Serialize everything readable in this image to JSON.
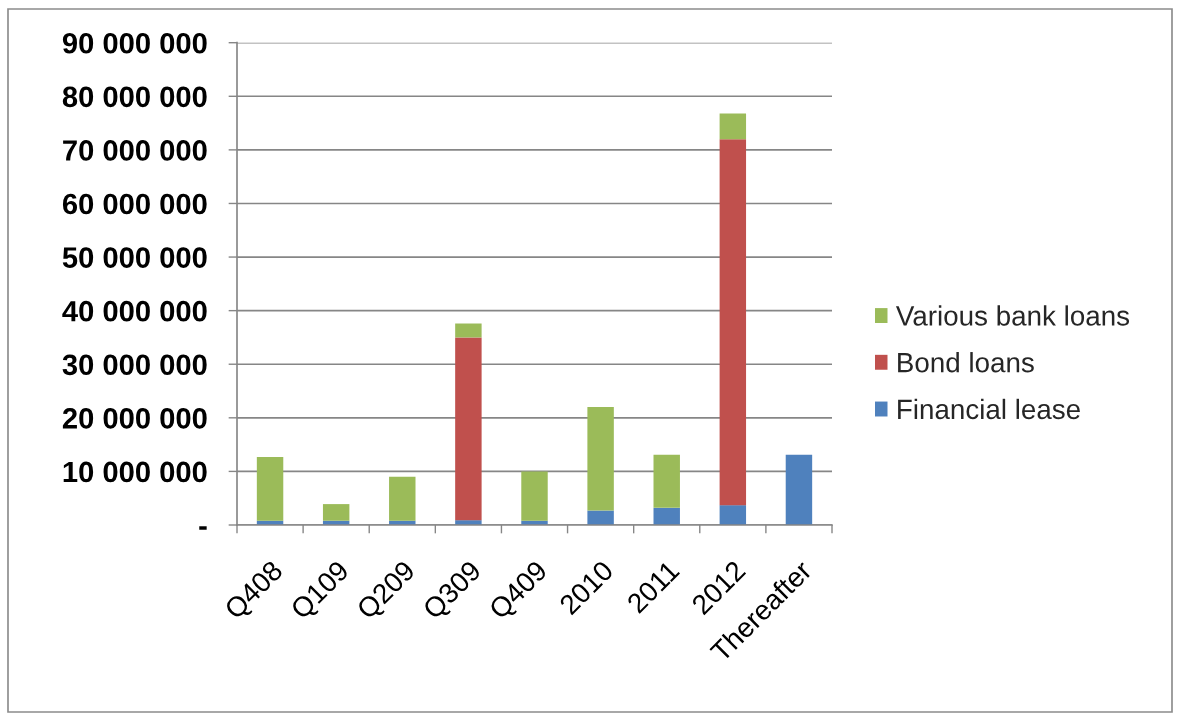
{
  "chart_data": {
    "type": "bar",
    "stacked": true,
    "categories": [
      "Q408",
      "Q109",
      "Q209",
      "Q309",
      "Q409",
      "2010",
      "2011",
      "2012",
      "Thereafter"
    ],
    "series": [
      {
        "name": "Financial lease",
        "color": "#4f81bd",
        "values": [
          800000,
          800000,
          800000,
          900000,
          800000,
          2700000,
          3200000,
          3700000,
          13100000
        ]
      },
      {
        "name": "Bond loans",
        "color": "#c0504d",
        "values": [
          null,
          null,
          null,
          34100000,
          null,
          null,
          null,
          68300000,
          null
        ]
      },
      {
        "name": "Various bank loans",
        "color": "#9bbb59",
        "values": [
          11900000,
          3100000,
          8200000,
          2600000,
          9200000,
          19300000,
          9900000,
          4800000,
          null
        ]
      }
    ],
    "ylim": [
      0,
      90000000
    ],
    "yticks": [
      {
        "value": 0,
        "label": "-"
      },
      {
        "value": 10000000,
        "label": "10 000 000"
      },
      {
        "value": 20000000,
        "label": "20 000 000"
      },
      {
        "value": 30000000,
        "label": "30 000 000"
      },
      {
        "value": 40000000,
        "label": "40 000 000"
      },
      {
        "value": 50000000,
        "label": "50 000 000"
      },
      {
        "value": 60000000,
        "label": "60 000 000"
      },
      {
        "value": 70000000,
        "label": "70 000 000"
      },
      {
        "value": 80000000,
        "label": "80 000 000"
      },
      {
        "value": 90000000,
        "label": "90 000 000"
      }
    ],
    "grid": "y",
    "legend": "right"
  }
}
